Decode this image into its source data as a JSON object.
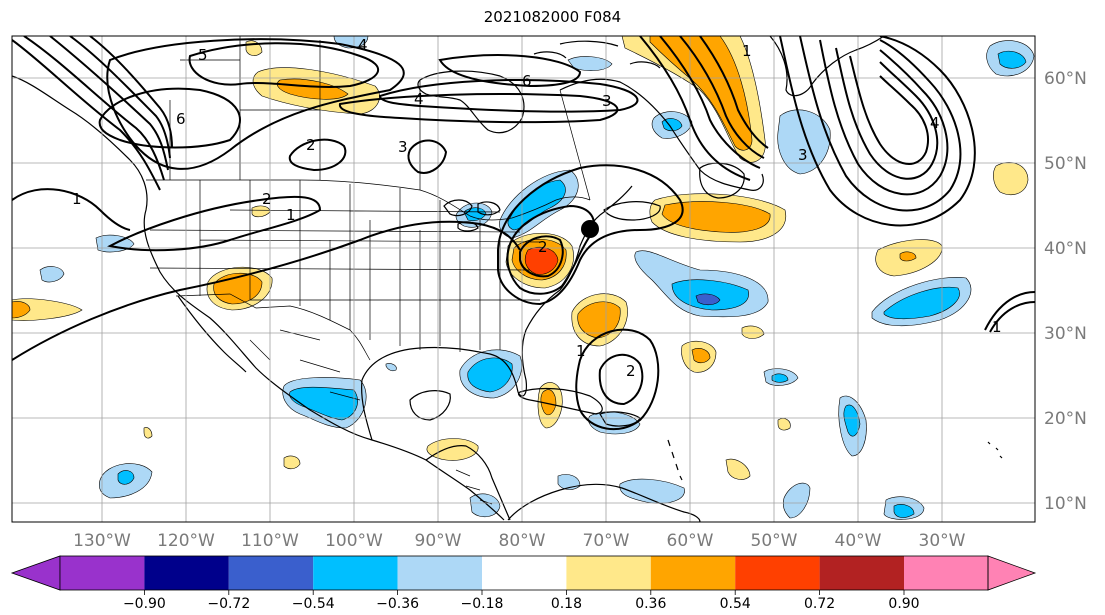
{
  "title": "2021082000 F084",
  "longitude_labels": [
    "130°W",
    "120°W",
    "110°W",
    "100°W",
    "90°W",
    "80°W",
    "70°W",
    "60°W",
    "50°W",
    "40°W",
    "30°W"
  ],
  "latitude_labels": [
    "60°N",
    "50°N",
    "40°N",
    "30°N",
    "20°N",
    "10°N"
  ],
  "colorbar": {
    "tick_labels": [
      "−0.90",
      "−0.72",
      "−0.54",
      "−0.36",
      "−0.18",
      "0.18",
      "0.36",
      "0.54",
      "0.72",
      "0.90"
    ],
    "colors": [
      "#9932cc",
      "#00008b",
      "#3a5fcd",
      "#00bfff",
      "#add8f6",
      "#ffffff",
      "#ffe88a",
      "#ffa500",
      "#ff4000",
      "#b22222",
      "#ff82b4"
    ]
  },
  "contour_labels": [
    "5",
    "4",
    "6",
    "3",
    "2",
    "1",
    "1",
    "3",
    "2",
    "4",
    "4",
    "1",
    "2",
    "3",
    "6",
    "1",
    "1",
    "2"
  ],
  "storm_marker": "storm-center"
}
